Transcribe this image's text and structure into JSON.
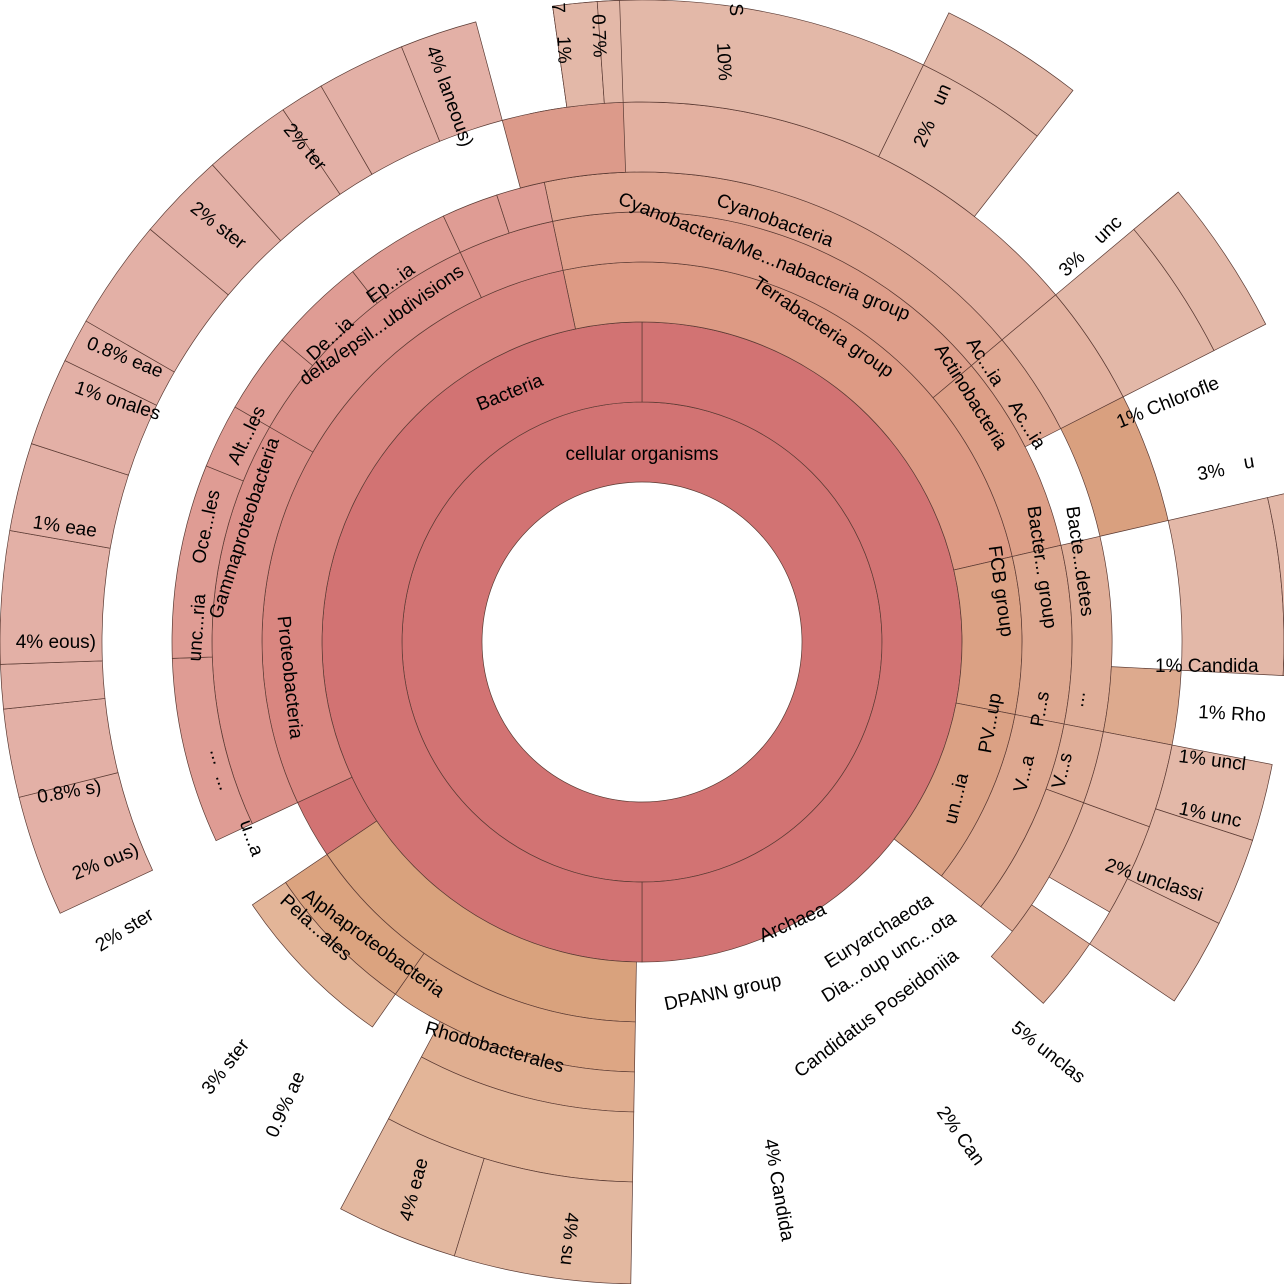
{
  "chart_data": {
    "type": "sunburst",
    "title": "",
    "root": "cellular organisms",
    "nodes": [
      {
        "id": "root",
        "label": "cellular organisms",
        "ring": 0,
        "start": 0,
        "end": 360,
        "color": "#d27373"
      },
      {
        "id": "bacteria",
        "label": "Bacteria",
        "ring": 1,
        "start": 0,
        "end": 180,
        "color": "#d27373"
      },
      {
        "id": "bac_rest",
        "label": "",
        "ring": 1,
        "start": 180,
        "end": 360,
        "color": "#d27373"
      },
      {
        "id": "archaea",
        "label": "Archaea",
        "ring": 2,
        "start": 181,
        "end": 236,
        "color": "#d9a27d"
      },
      {
        "id": "arch_gap",
        "label": "",
        "ring": 2,
        "start": 236,
        "end": 245,
        "color": "#d27373"
      },
      {
        "id": "terra",
        "label": "Terrabacteria group",
        "ring": 2,
        "start": 348,
        "end": 77,
        "color": "#dd9a84"
      },
      {
        "id": "cyanoMe",
        "label": "Cyanobacteria/Me...nabacteria group",
        "ring": 3,
        "start": 348,
        "end": 50,
        "color": "#de9e8a"
      },
      {
        "id": "cyano",
        "label": "Cyanobacteria",
        "ring": 4,
        "start": 348,
        "end": 50,
        "color": "#e0a692"
      },
      {
        "id": "cyano_o",
        "label": "",
        "ring": 5,
        "start": 348,
        "end": 50,
        "color": "#e3b0a0"
      },
      {
        "id": "cyano10",
        "label": "10%",
        "ring": 6,
        "start": 352,
        "end": 26,
        "color": "#e3b8a8"
      },
      {
        "id": "cyano2",
        "label": "2%",
        "ring": 6,
        "start": 26,
        "end": 38,
        "color": "#e3b8a8"
      },
      {
        "id": "cyano_un",
        "label": "un",
        "ring": 7,
        "start": 26,
        "end": 38,
        "color": "#e3b8a8"
      },
      {
        "id": "actino",
        "label": "Actinobacteria",
        "ring": 3,
        "start": 50,
        "end": 77,
        "color": "#dd9f87"
      },
      {
        "id": "acia1",
        "label": "Ac...ia",
        "ring": 4,
        "start": 50,
        "end": 63,
        "color": "#e0a892"
      },
      {
        "id": "acia2",
        "label": "Ac...ia",
        "ring": 5,
        "start": 50,
        "end": 63,
        "color": "#e3b2a0"
      },
      {
        "id": "act3",
        "label": "3%",
        "ring": 6,
        "start": 50,
        "end": 63,
        "color": "#e3b8a8"
      },
      {
        "id": "act_unc",
        "label": "unc",
        "ring": 7,
        "start": 50,
        "end": 63,
        "color": "#e3b8a8"
      },
      {
        "id": "chlor",
        "label": "1%  Chlorofle",
        "ring": 5,
        "start": 63,
        "end": 77,
        "color": "#d9a07f"
      },
      {
        "id": "fcb",
        "label": "FCB group",
        "ring": 2,
        "start": 77,
        "end": 101,
        "color": "#dba184"
      },
      {
        "id": "bactgroup",
        "label": "Bacter... group",
        "ring": 3,
        "start": 77,
        "end": 101,
        "color": "#dea890"
      },
      {
        "id": "bactdetes",
        "label": "Bacte...detes",
        "ring": 4,
        "start": 77,
        "end": 101,
        "color": "#e0ae98"
      },
      {
        "id": "bact3",
        "label": "3%",
        "ring": 6,
        "start": 77,
        "end": 93,
        "color": "#e3b8a8"
      },
      {
        "id": "bact_u",
        "label": "u",
        "ring": 7,
        "start": 77,
        "end": 93,
        "color": "#e3b8a8"
      },
      {
        "id": "cand1",
        "label": "1%  Candida",
        "ring": 5,
        "start": 93,
        "end": 101,
        "color": "#ddaa8e"
      },
      {
        "id": "pvc",
        "label": "PV...up",
        "ring": 3,
        "start": 101,
        "end": 128,
        "color": "#dea890"
      },
      {
        "id": "uncia",
        "label": "un...ia",
        "ring": 2,
        "start": 101,
        "end": 128,
        "color": "#dba184"
      },
      {
        "id": "ps",
        "label": "P...s",
        "ring": 4,
        "start": 101,
        "end": 110,
        "color": "#e0ae98"
      },
      {
        "id": "va",
        "label": "V...a",
        "ring": 4,
        "start": 110,
        "end": 128,
        "color": "#e0ae98"
      },
      {
        "id": "vs",
        "label": "V...s",
        "ring": 5,
        "start": 110,
        "end": 120,
        "color": "#e3b4a2"
      },
      {
        "id": "dots1",
        "label": "...",
        "ring": 5,
        "start": 101,
        "end": 110,
        "color": "#e3b4a2"
      },
      {
        "id": "rho",
        "label": "1%  Rho",
        "ring": 6,
        "start": 101,
        "end": 108,
        "color": "#e3b8a8"
      },
      {
        "id": "uncl1",
        "label": "1%  uncl",
        "ring": 6,
        "start": 108,
        "end": 116,
        "color": "#e3b8a8"
      },
      {
        "id": "unc1b",
        "label": "1%  unc",
        "ring": 6,
        "start": 116,
        "end": 124,
        "color": "#e3b8a8"
      },
      {
        "id": "uncl2",
        "label": "2%  unclassi",
        "ring": 5,
        "start": 124,
        "end": 132,
        "color": "#e0ae98"
      },
      {
        "id": "eury",
        "label": "Euryarchaeota",
        "ring": 3,
        "start": 181,
        "end": 215,
        "color": "#dda684"
      },
      {
        "id": "dpann",
        "label": "DPANN group",
        "ring": 3,
        "start": 215,
        "end": 236,
        "color": "#dba37f"
      },
      {
        "id": "diaoup",
        "label": "Dia...oup unc...ota",
        "ring": 4,
        "start": 181,
        "end": 208,
        "color": "#e0ae90"
      },
      {
        "id": "candpos",
        "label": "Candidatus Poseidoniia",
        "ring": 5,
        "start": 181,
        "end": 208,
        "color": "#e3b598"
      },
      {
        "id": "unclas5",
        "label": "5%  unclas",
        "ring": 6,
        "start": 181,
        "end": 197,
        "color": "#e3b8a0"
      },
      {
        "id": "can2",
        "label": "2%  Can",
        "ring": 6,
        "start": 197,
        "end": 208,
        "color": "#e3b8a0"
      },
      {
        "id": "candida4",
        "label": "4%  Candida",
        "ring": 4,
        "start": 215,
        "end": 236,
        "color": "#e3b598"
      },
      {
        "id": "proteo",
        "label": "Proteobacteria",
        "ring": 2,
        "start": 245,
        "end": 348,
        "color": "#d98680"
      },
      {
        "id": "alpha",
        "label": "Alphaproteobacteria",
        "ring": 3,
        "start": 245,
        "end": 300,
        "color": "#dc918a"
      },
      {
        "id": "rhodob",
        "label": "Rhodobacterales",
        "ring": 4,
        "start": 245,
        "end": 268,
        "color": "#df9c94"
      },
      {
        "id": "pelales",
        "label": "Pela...ales",
        "ring": 4,
        "start": 268,
        "end": 292,
        "color": "#df9c94"
      },
      {
        "id": "ua",
        "label": "u...a",
        "ring": 4,
        "start": 292,
        "end": 300,
        "color": "#df9c94"
      },
      {
        "id": "rhod4",
        "label": "4%  su",
        "ring": 6,
        "start": 245,
        "end": 256,
        "color": "#e3b0a6"
      },
      {
        "id": "rhodae4",
        "label": "4%  ae",
        "ring": 6,
        "start": 256,
        "end": 264,
        "color": "#e3b0a6"
      },
      {
        "id": "ae09",
        "label": "0.9%  ae",
        "ring": 6,
        "start": 264,
        "end": 268,
        "color": "#e3b0a6"
      },
      {
        "id": "ster3",
        "label": "3%  ster",
        "ring": 6,
        "start": 268,
        "end": 280,
        "color": "#e3b0a6"
      },
      {
        "id": "ster2",
        "label": "2%  ster",
        "ring": 6,
        "start": 280,
        "end": 288,
        "color": "#e3b0a6"
      },
      {
        "id": "ous2",
        "label": "2%  ous)",
        "ring": 6,
        "start": 288,
        "end": 296,
        "color": "#e3b0a6"
      },
      {
        "id": "s08",
        "label": "0.8%  s)",
        "ring": 6,
        "start": 296,
        "end": 300,
        "color": "#e3b0a6"
      },
      {
        "id": "gamma",
        "label": "Gammaproteobacteria",
        "ring": 3,
        "start": 300,
        "end": 335,
        "color": "#dc918a"
      },
      {
        "id": "uncria",
        "label": "unc...ria",
        "ring": 4,
        "start": 300,
        "end": 310,
        "color": "#df9c94"
      },
      {
        "id": "oceles",
        "label": "Oce...les",
        "ring": 4,
        "start": 310,
        "end": 322,
        "color": "#df9c94"
      },
      {
        "id": "altles",
        "label": "Alt...les",
        "ring": 4,
        "start": 322,
        "end": 335,
        "color": "#df9c94"
      },
      {
        "id": "eous4",
        "label": "4%  eous)",
        "ring": 6,
        "start": 300,
        "end": 310,
        "color": "#e3b0a6"
      },
      {
        "id": "eae1",
        "label": "1%  eae",
        "ring": 6,
        "start": 310,
        "end": 318,
        "color": "#e3b0a6"
      },
      {
        "id": "onales1",
        "label": "1%  onales",
        "ring": 6,
        "start": 318,
        "end": 326,
        "color": "#e3b0a6"
      },
      {
        "id": "eae08",
        "label": "0.8%  eae",
        "ring": 6,
        "start": 326,
        "end": 330,
        "color": "#e3b0a6"
      },
      {
        "id": "ster2b",
        "label": "2%  ster",
        "ring": 6,
        "start": 330,
        "end": 338,
        "color": "#e3b0a6"
      },
      {
        "id": "delta",
        "label": "delta/epsil...ubdivisions",
        "ring": 3,
        "start": 335,
        "end": 348,
        "color": "#dc918a"
      },
      {
        "id": "deia",
        "label": "De...ia",
        "ring": 4,
        "start": 335,
        "end": 342,
        "color": "#df9c94"
      },
      {
        "id": "epia",
        "label": "Ep...ia",
        "ring": 4,
        "start": 342,
        "end": 348,
        "color": "#df9c94"
      },
      {
        "id": "ter2",
        "label": "2%  ter",
        "ring": 6,
        "start": 338,
        "end": 345,
        "color": "#e3b0a6"
      },
      {
        "id": "laneous4",
        "label": "4%  laneous)",
        "ring": 5,
        "start": 345,
        "end": 358,
        "color": "#dc9a8a"
      },
      {
        "id": "pct1",
        "label": "1%",
        "ring": 6,
        "start": 352,
        "end": 356,
        "color": "#e3b8a8"
      },
      {
        "id": "pct07",
        "label": "0.7%",
        "ring": 6,
        "start": 356,
        "end": 358,
        "color": "#e3b8a8"
      }
    ]
  },
  "labels": {
    "center": "cellular organisms",
    "bacteria": "Bacteria",
    "archaea": "Archaea",
    "terrabacteria": "Terrabacteria group",
    "cyano_me": "Cyanobacteria/Me...nabacteria group",
    "cyanobacteria": "Cyanobacteria",
    "actinobacteria": "Actinobacteria",
    "acia_a": "Ac...ia",
    "acia_b": "Ac...ia",
    "fcb": "FCB group",
    "bacter_group": "Bacter... group",
    "bacte_detes": "Bacte...detes",
    "pvc": "PV...up",
    "uncia": "un...ia",
    "ps": "P...s",
    "va": "V...a",
    "vs": "V...s",
    "dots": "...",
    "euryarchaeota": "Euryarchaeota",
    "dpann": "DPANN group",
    "dia_oup": "Dia...oup unc...ota",
    "cand_pos": "Candidatus Poseidoniia",
    "proteobacteria": "Proteobacteria",
    "alpha": "Alphaproteobacteria",
    "gamma": "Gammaproteobacteria",
    "delta": "delta/epsil...ubdivisions",
    "rhodobacterales": "Rhodobacterales",
    "pelales": "Pela...ales",
    "ua": "u...a",
    "uncria": "unc...ria",
    "oceles": "Oce...les",
    "altles": "Alt...les",
    "deia": "De...ia",
    "epia": "Ep...ia",
    "dots_a": "...",
    "dots_b": "...",
    "p10": "10%",
    "p2a": "2%",
    "un": "un",
    "p3a": "3%",
    "unc": "unc",
    "chloro": "1%   Chlorofle",
    "p3b": "3%",
    "u": "u",
    "cand1": "1%   Candida",
    "rho": "1%   Rho",
    "uncl1": "1%   uncl",
    "unc1": "1%   unc",
    "uncl2": "2%   unclassi",
    "unclas5": "5%   unclas",
    "can2": "2%   Can",
    "candida4": "4%   Candida",
    "su4": "4%   su",
    "eae4": "4%   eae",
    "ae09": "0.9%   ae",
    "ster3": "3%   ster",
    "ster2": "2%   ster",
    "ous2": "2%   ous)",
    "s08": "0.8%   s)",
    "eous4": "4%   eous)",
    "eae1": "1%   eae",
    "onales1": "1%   onales",
    "eae08": "0.8%   eae",
    "ster2b": "2%   ster",
    "ter2": "2%   ter",
    "laneous4": "4%   laneous)",
    "p1": "1%",
    "p07": "0.7%",
    "seven": "7",
    "s_top": "S"
  }
}
